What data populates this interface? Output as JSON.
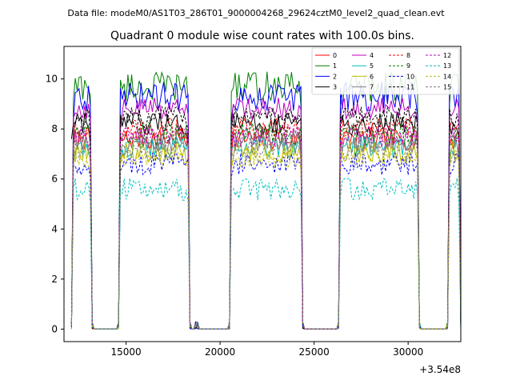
{
  "chart_data": {
    "type": "line",
    "suptitle": "Data file: modeM0/AS1T03_286T01_9000004268_29624cztM0_level2_quad_clean.evt",
    "title": "Quadrant 0 module wise count rates with 100.0s bins.",
    "xlabel": "",
    "ylabel": "",
    "x_offset_label": "+3.54e8",
    "xlim": [
      11700,
      32800
    ],
    "ylim": [
      -0.5,
      11.3
    ],
    "xticks": [
      15000,
      20000,
      25000,
      30000
    ],
    "xtick_labels": [
      "15000",
      "20000",
      "25000",
      "30000"
    ],
    "yticks": [
      0,
      2,
      4,
      6,
      8,
      10
    ],
    "ytick_labels": [
      "0",
      "2",
      "4",
      "6",
      "8",
      "10"
    ],
    "bin_width": 100,
    "segments": [
      [
        12100,
        13200
      ],
      [
        14600,
        18400
      ],
      [
        18700,
        18800
      ],
      [
        20500,
        24400
      ],
      [
        26300,
        30600
      ],
      [
        32100,
        32800
      ]
    ],
    "legend_position": "top-right",
    "series": [
      {
        "name": "0",
        "color": "#ff0000",
        "dash": "solid",
        "level": 7.6
      },
      {
        "name": "1",
        "color": "#008000",
        "dash": "solid",
        "level": 9.7
      },
      {
        "name": "2",
        "color": "#0000ff",
        "dash": "solid",
        "level": 9.3
      },
      {
        "name": "3",
        "color": "#000000",
        "dash": "solid",
        "level": 8.2
      },
      {
        "name": "4",
        "color": "#bf00bf",
        "dash": "solid",
        "level": 8.8
      },
      {
        "name": "5",
        "color": "#00bfbf",
        "dash": "solid",
        "level": 7.3
      },
      {
        "name": "6",
        "color": "#bfbf00",
        "dash": "solid",
        "level": 7.1
      },
      {
        "name": "7",
        "color": "#808080",
        "dash": "solid",
        "level": 7.5
      },
      {
        "name": "8",
        "color": "#ff0000",
        "dash": "dashed",
        "level": 8.0
      },
      {
        "name": "9",
        "color": "#008000",
        "dash": "dashed",
        "level": 7.8
      },
      {
        "name": "10",
        "color": "#0000ff",
        "dash": "dashed",
        "level": 6.6
      },
      {
        "name": "11",
        "color": "#000000",
        "dash": "dashed",
        "level": 8.5
      },
      {
        "name": "12",
        "color": "#bf00bf",
        "dash": "dashed",
        "level": 7.7
      },
      {
        "name": "13",
        "color": "#00bfbf",
        "dash": "dashed",
        "level": 5.6
      },
      {
        "name": "14",
        "color": "#bfbf00",
        "dash": "dashed",
        "level": 6.9
      },
      {
        "name": "15",
        "color": "#808080",
        "dash": "dashed",
        "level": 7.2
      }
    ]
  }
}
